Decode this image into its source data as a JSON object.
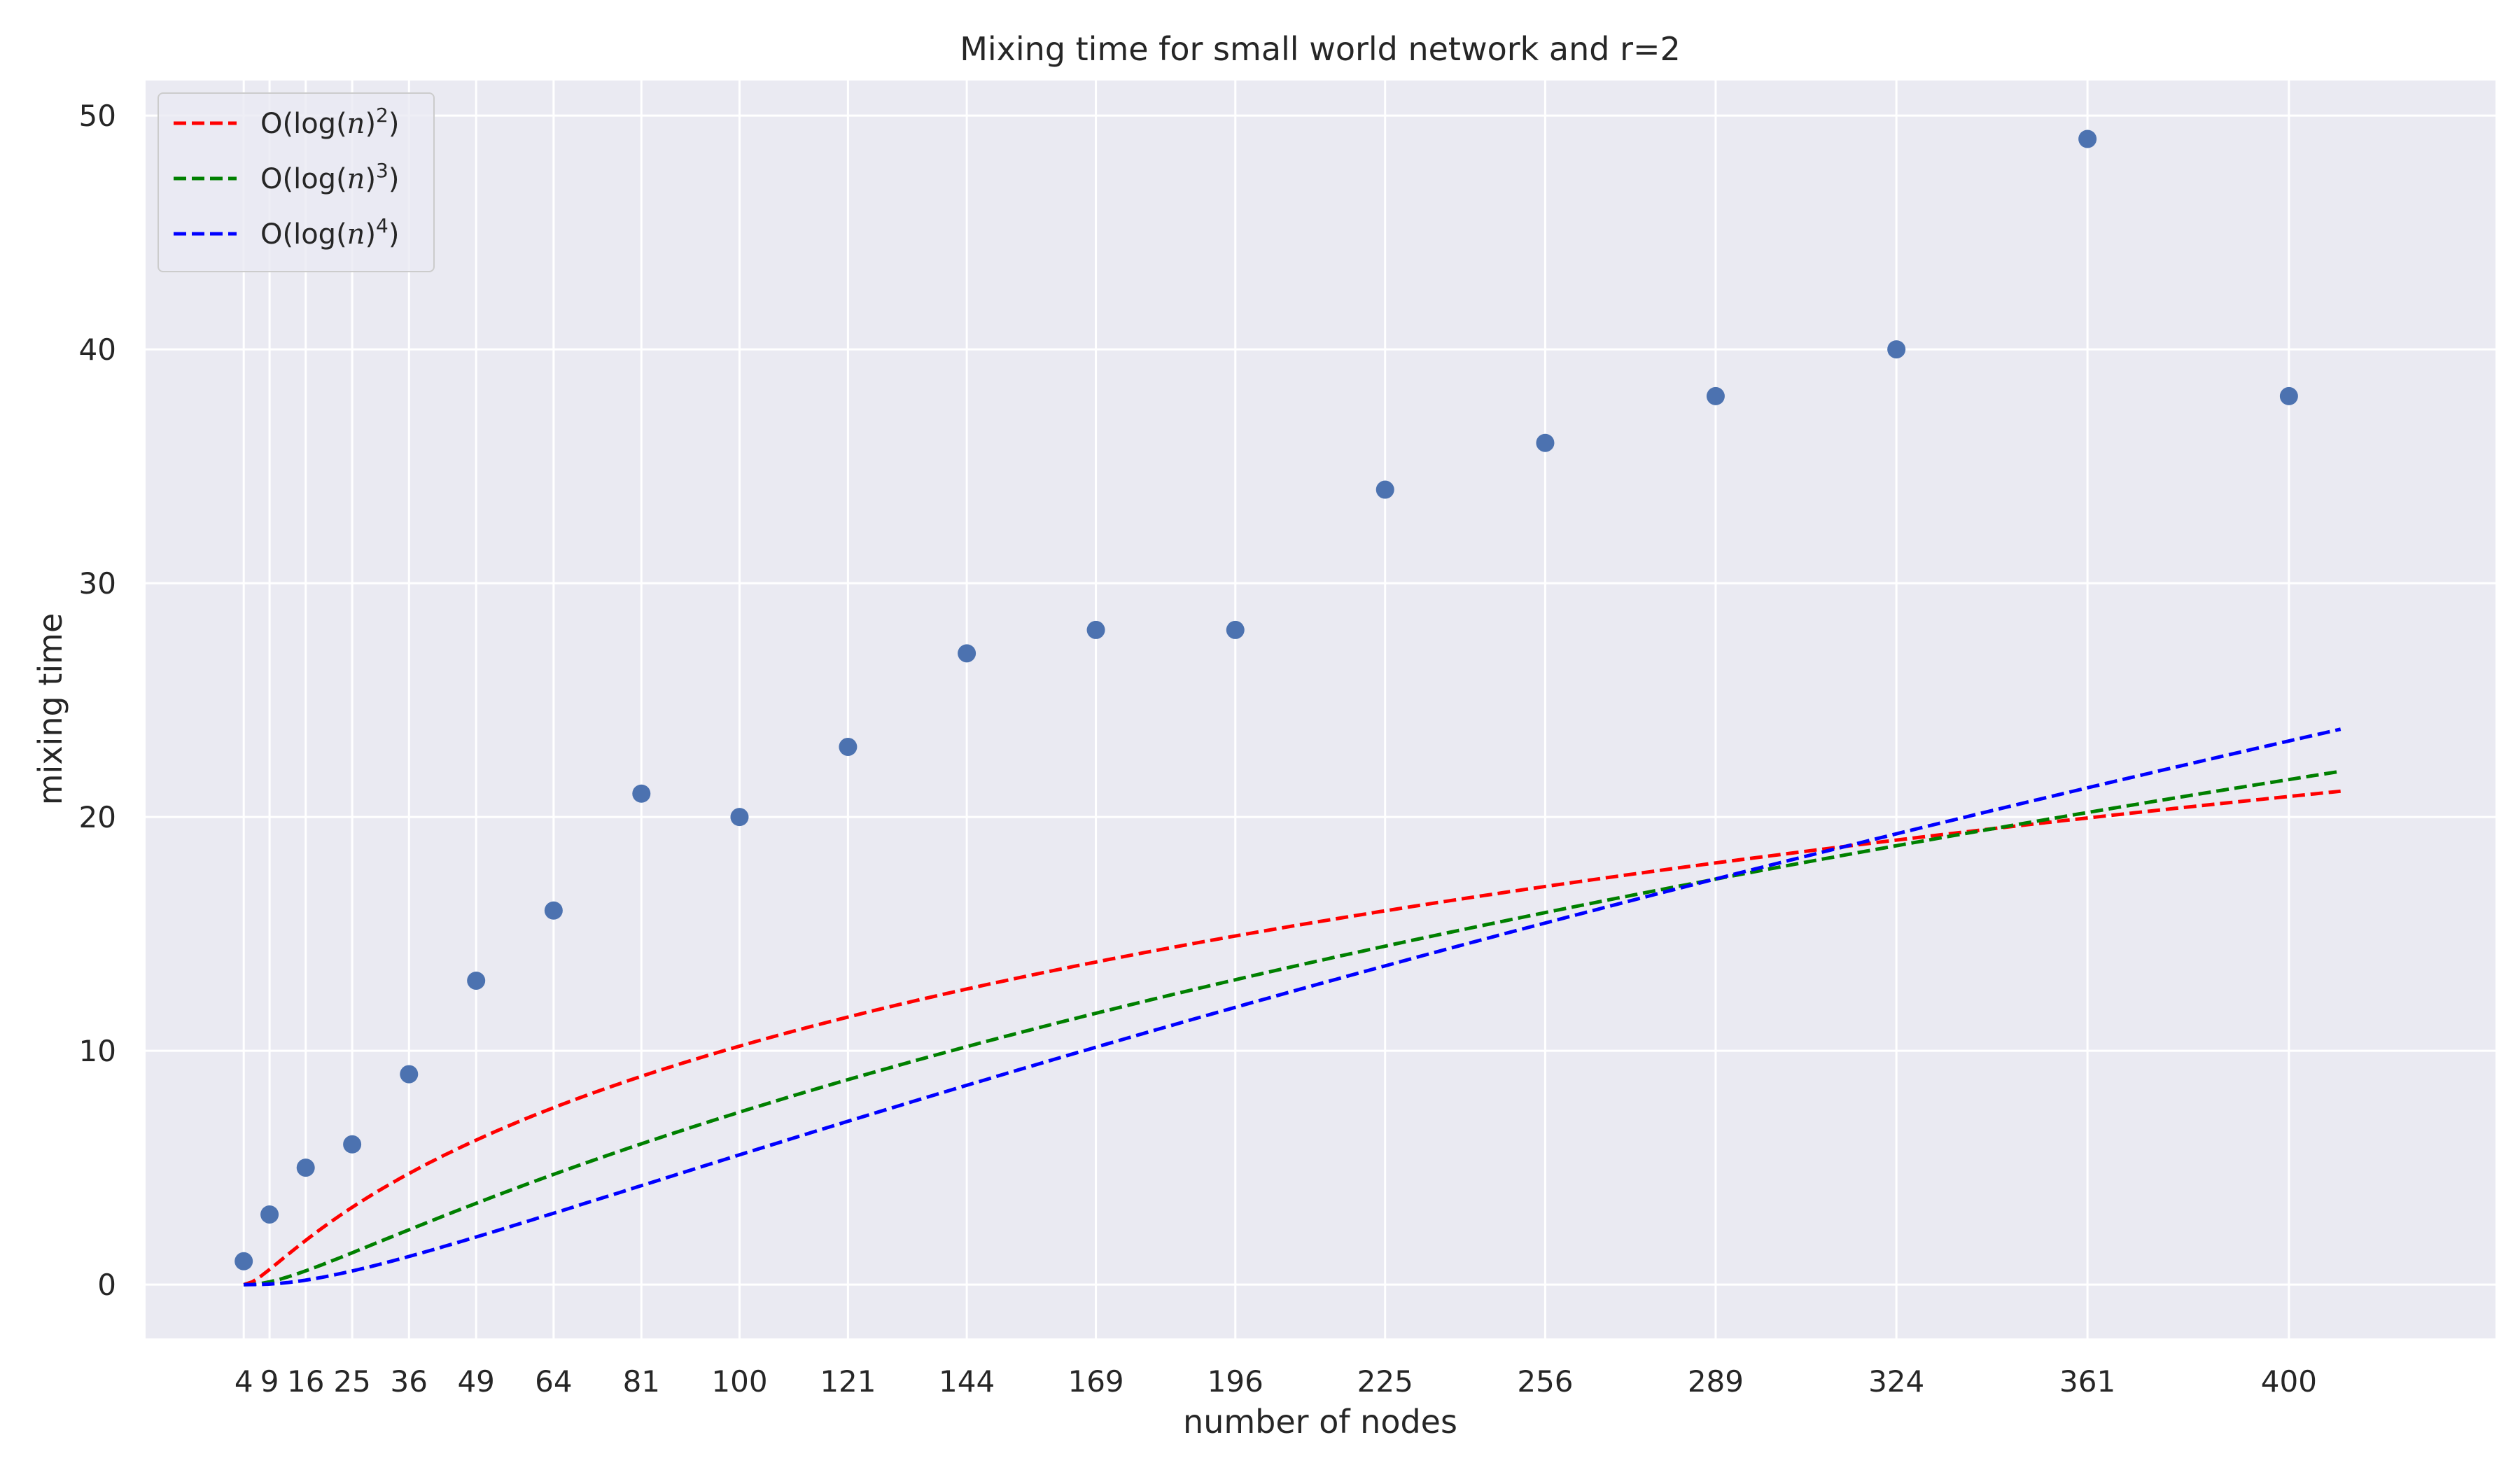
{
  "chart_data": {
    "type": "scatter",
    "title": "Mixing time for small world network and r=2",
    "xlabel": "number of nodes",
    "ylabel": "mixing time",
    "xlim": [
      -15,
      440
    ],
    "ylim": [
      -2.3,
      51.5
    ],
    "x_ticks": [
      4,
      9,
      16,
      25,
      36,
      49,
      64,
      81,
      100,
      121,
      144,
      169,
      196,
      225,
      256,
      289,
      324,
      361,
      400
    ],
    "y_ticks": [
      0,
      10,
      20,
      30,
      40,
      50
    ],
    "grid": true,
    "legend_position": "top-left",
    "background_color": "#eaeaf2",
    "series": [
      {
        "kind": "scatter",
        "color": "#4c72b0",
        "x": [
          4,
          9,
          16,
          25,
          36,
          49,
          64,
          81,
          100,
          121,
          144,
          169,
          196,
          225,
          256,
          289,
          324,
          361,
          400
        ],
        "y": [
          1,
          3,
          5,
          6,
          9,
          13,
          16,
          21,
          20,
          23,
          27,
          28,
          28,
          34,
          36,
          38,
          40,
          49,
          38
        ]
      },
      {
        "kind": "line",
        "name": "O(log(n)^2)",
        "legend": {
          "pre": "O(log(",
          "var": "n",
          "post": ")",
          "exp": "2"
        },
        "color": "#ff0000",
        "power": 2,
        "scale": 0.9845,
        "x_range": [
          4,
          410
        ]
      },
      {
        "kind": "line",
        "name": "O(log(n)^3)",
        "legend": {
          "pre": "O(log(",
          "var": "n",
          "post": ")",
          "exp": "3"
        },
        "color": "#008000",
        "power": 3,
        "scale": 0.2212,
        "x_range": [
          4,
          410
        ]
      },
      {
        "kind": "line",
        "name": "O(log(n)^4)",
        "legend": {
          "pre": "O(log(",
          "var": "n",
          "post": ")",
          "exp": "4"
        },
        "color": "#0000ff",
        "power": 4,
        "scale": 0.0517,
        "x_range": [
          4,
          410
        ]
      }
    ]
  }
}
